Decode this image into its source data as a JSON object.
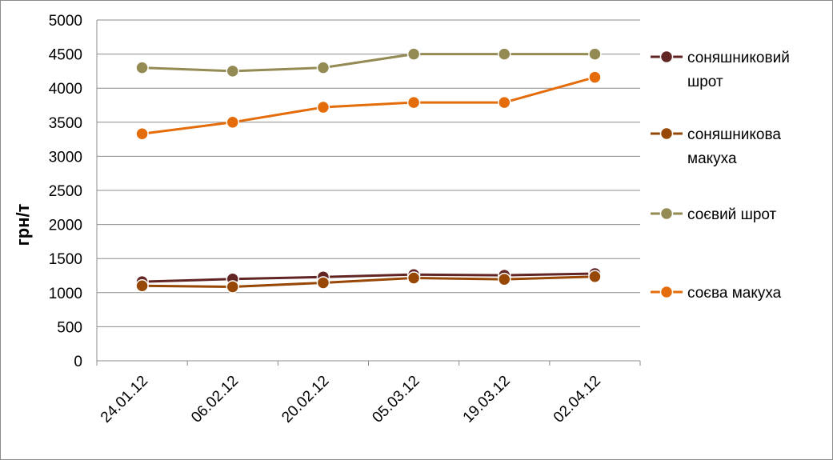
{
  "chart_data": {
    "type": "line",
    "title": "",
    "xlabel": "",
    "ylabel": "грн/т",
    "ylim": [
      0,
      5000
    ],
    "ytick_step": 500,
    "grid": "horizontal",
    "legend_position": "right",
    "categories": [
      "24.01.12",
      "06.02.12",
      "20.02.12",
      "05.03.12",
      "19.03.12",
      "02.04.12"
    ],
    "series": [
      {
        "name": "соняшниковий шрот",
        "legend_lines": [
          "соняшниковий",
          "шрот"
        ],
        "color": "#632523",
        "values": [
          1160,
          1200,
          1230,
          1265,
          1255,
          1280
        ]
      },
      {
        "name": "соняшникова макуха",
        "legend_lines": [
          "соняшникова",
          "макуха"
        ],
        "color": "#974706",
        "values": [
          1100,
          1085,
          1145,
          1215,
          1195,
          1235
        ]
      },
      {
        "name": "соєвий шрот",
        "legend_lines": [
          "соєвий шрот"
        ],
        "color": "#948A54",
        "values": [
          4300,
          4250,
          4300,
          4500,
          4500,
          4500
        ]
      },
      {
        "name": "соєва макуха",
        "legend_lines": [
          "соєва макуха"
        ],
        "color": "#E46C0A",
        "values": [
          3330,
          3500,
          3720,
          3790,
          3790,
          4160
        ]
      }
    ]
  }
}
